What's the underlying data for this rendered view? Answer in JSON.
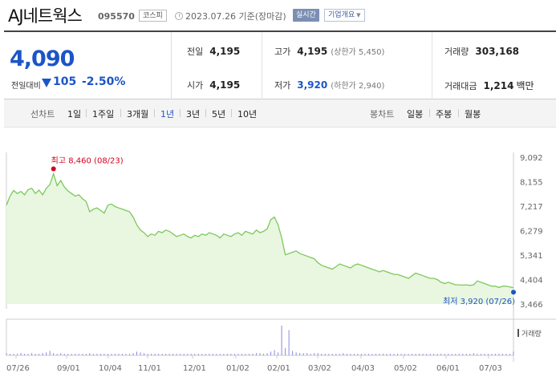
{
  "header": {
    "name": "AJ네트웍스",
    "code": "095570",
    "market": "코스피",
    "date": "2023.07.26 기준(장마감)",
    "realtime_label": "실시간",
    "company_label": "기업개요"
  },
  "summary": {
    "price": "4,090",
    "vs_label": "전일대비",
    "change": "105",
    "change_rate": "-2.50%",
    "prev_close_label": "전일",
    "prev_close": "4,195",
    "open_label": "시가",
    "open": "4,195",
    "high_label": "고가",
    "high": "4,195",
    "upper_limit": "(상한가 5,450)",
    "low_label": "저가",
    "low": "3,920",
    "lower_limit": "(하한가 2,940)",
    "volume_label": "거래량",
    "volume": "303,168",
    "amount_label": "거래대금",
    "amount": "1,214",
    "amount_unit": "백만"
  },
  "period_tabs": {
    "line_label": "선차트",
    "line": [
      "1일",
      "1주일",
      "3개월",
      "1년",
      "3년",
      "5년",
      "10년"
    ],
    "active": "1년",
    "candle_label": "봉차트",
    "candle": [
      "일봉",
      "주봉",
      "월봉"
    ]
  },
  "chart_data": {
    "type": "area",
    "y_ticks": [
      "9,092",
      "8,155",
      "7,217",
      "6,279",
      "5,341",
      "4,404",
      "3,466"
    ],
    "ylim": [
      3466,
      9092
    ],
    "x_ticks": [
      "07/26",
      "09/01",
      "10/04",
      "11/01",
      "12/01",
      "01/02",
      "02/01",
      "03/02",
      "04/03",
      "05/02",
      "06/01",
      "07/03"
    ],
    "volume_label": "거래량",
    "high_annotation": "최고 8,460 (08/23)",
    "low_annotation": "최저 3,920 (07/26)",
    "series": [
      {
        "values": [
          7250,
          7600,
          7820,
          7700,
          7780,
          7650,
          7850,
          7900,
          7700,
          7830,
          7650,
          7900,
          8050,
          8460,
          8000,
          8200,
          7950,
          7800,
          7700,
          7600,
          7650,
          7500,
          7400,
          7000,
          7100,
          7150,
          7050,
          6950,
          7250,
          7300,
          7200,
          7150,
          7100,
          7050,
          7000,
          6800,
          6500,
          6300,
          6200,
          6050,
          6150,
          6100,
          6250,
          6200,
          6300,
          6250,
          6150,
          6050,
          6100,
          6150,
          6050,
          6000,
          6100,
          6050,
          6150,
          6100,
          6200,
          6150,
          6100,
          6000,
          6150,
          6100,
          6050,
          6150,
          6200,
          6100,
          6250,
          6200,
          6150,
          6300,
          6200,
          6250,
          6350,
          6700,
          6800,
          6500,
          6000,
          5350,
          5400,
          5450,
          5500,
          5400,
          5350,
          5300,
          5250,
          5200,
          5050,
          4950,
          4900,
          4850,
          4800,
          4900,
          5000,
          4950,
          4900,
          4850,
          4950,
          5000,
          4950,
          4900,
          4850,
          4800,
          4750,
          4700,
          4750,
          4700,
          4650,
          4600,
          4600,
          4550,
          4500,
          4450,
          4550,
          4650,
          4600,
          4550,
          4500,
          4450,
          4450,
          4400,
          4300,
          4250,
          4300,
          4250,
          4200,
          4200,
          4190,
          4200,
          4180,
          4200,
          4350,
          4300,
          4250,
          4200,
          4150,
          4150,
          4100,
          4150,
          4150,
          4120,
          4090
        ]
      }
    ],
    "volume": [
      3,
      2,
      2,
      2,
      3,
      2,
      2,
      3,
      2,
      2,
      3,
      4,
      6,
      3,
      2,
      3,
      2,
      2,
      2,
      2,
      2,
      2,
      2,
      3,
      2,
      2,
      2,
      2,
      2,
      2,
      2,
      2,
      2,
      2,
      2,
      3,
      5,
      4,
      3,
      2,
      2,
      2,
      2,
      2,
      2,
      2,
      2,
      2,
      2,
      2,
      2,
      2,
      2,
      2,
      2,
      2,
      2,
      2,
      2,
      2,
      2,
      2,
      2,
      2,
      2,
      2,
      2,
      2,
      2,
      3,
      3,
      2,
      3,
      5,
      7,
      4,
      40,
      10,
      34,
      6,
      4,
      3,
      3,
      3,
      2,
      3,
      3,
      2,
      2,
      2,
      2,
      2,
      2,
      3,
      2,
      2,
      2,
      2,
      2,
      2,
      2,
      2,
      2,
      2,
      2,
      2,
      2,
      2,
      2,
      2,
      2,
      2,
      2,
      2,
      2,
      2,
      2,
      2,
      2,
      2,
      2,
      2,
      2,
      2,
      2,
      2,
      2,
      2,
      2,
      3,
      2,
      2,
      2,
      2,
      2,
      2,
      2,
      2,
      2,
      2,
      5
    ]
  },
  "colors": {
    "up": "#d6001c",
    "down": "#1b55c7",
    "line": "#7cc95c",
    "fill": "#e9f6e0"
  }
}
